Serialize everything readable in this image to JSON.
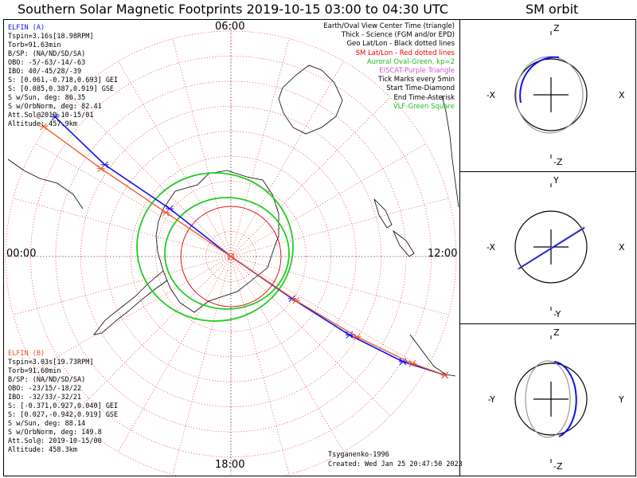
{
  "title": "Southern Solar Magnetic Footprints 2019-10-15 03:00 to 04:30 UTC",
  "orbit_title": "SM orbit",
  "hour_labels": {
    "top": "06:00",
    "left": "00:00",
    "bottom": "18:00",
    "right": "12:00"
  },
  "elfin_a": {
    "name": "ELFIN (A)",
    "color": "#1010ee",
    "lines": [
      "Tspin=3.16s[18.98RPM]",
      "Torb=91.63min",
      "B/SP: (NA/ND/SD/SA)",
      "OBO: -5/-63/-14/-63",
      "IBO: 40/-45/28/-39",
      "S: [0.061,-0.718,0.693] GEI",
      "S: [0.085,0.387,0.919] GSE",
      "S w/Sun, deg: 86.35",
      "S w/OrbNorm, deg: 82.41",
      "Att.Sol@2019-10-15/01",
      "Altitude: 457.9km"
    ]
  },
  "elfin_b": {
    "name": "ELFIN (B)",
    "color": "#ee5522",
    "lines": [
      "Tspin=3.03s[19.73RPM]",
      "Torb=91.60min",
      "B/SP: (NA/ND/SD/SA)",
      "OBO: -23/15/-18/22",
      "IBO: -32/33/-32/21",
      "S: [-0.371,0.927,0.040] GEI",
      "S: [0.027,-0.942,0.919] GSE",
      "S w/Sun, deg: 88.14",
      "S w/OrbNorm, deg: 149.8",
      "Att.Sol@: 2019-10-15/00",
      "Altitude: 458.3km"
    ]
  },
  "legend": [
    {
      "text": "Earth/Oval View Center Time (triangle)",
      "color": "#000000"
    },
    {
      "text": "Thick - Science (FGM and/or EPD)",
      "color": "#000000"
    },
    {
      "text": "Geo Lat/Lon - Black dotted lines",
      "color": "#000000"
    },
    {
      "text": "SM Lat/Lon - Red dotted lines",
      "color": "#ee0000"
    },
    {
      "text": "Auroral Oval-Green, kp=2",
      "color": "#22bb22"
    },
    {
      "text": "EISCAT-Purple Triangle",
      "color": "#cc55cc"
    },
    {
      "text": "Tick Marks every 5min",
      "color": "#000000"
    },
    {
      "text": "Start Time-Diamond",
      "color": "#000000"
    },
    {
      "text": "End Time-Asterisk",
      "color": "#000000"
    },
    {
      "text": "VLF-Green Square",
      "color": "#22bb22"
    }
  ],
  "footer": {
    "credit": "Tsyganenko-1996",
    "created": "Created: Wed Jan 25 20:47:50 2023"
  },
  "orbit_panels": [
    {
      "top": "Z",
      "bottom": "-Z",
      "left": "-X",
      "right": "X"
    },
    {
      "top": "Y",
      "bottom": "-Y",
      "left": "-X",
      "right": "X"
    },
    {
      "top": "Z",
      "bottom": "-Z",
      "left": "-Y",
      "right": "Y"
    }
  ],
  "colors": {
    "elfin_a": "#1010ee",
    "elfin_b": "#ee5522",
    "oval": "#22cc22",
    "sm_grid": "#dd0000",
    "geo": "#000000"
  },
  "chart_data": {
    "type": "scatter",
    "title": "Southern Solar Magnetic Footprints 2019-10-15 03:00 to 04:30 UTC",
    "xlabel": "",
    "ylabel": "",
    "series": [
      {
        "name": "ELFIN (A)",
        "x": [
          0.92,
          0.66,
          0.32,
          0.0,
          -0.32,
          -0.62,
          -0.9,
          -1.12
        ],
        "y": [
          0.73,
          0.48,
          0.25,
          0.0,
          -0.22,
          -0.41,
          -0.55,
          -0.62
        ]
      },
      {
        "name": "ELFIN (B)",
        "x": [
          0.98,
          0.68,
          0.34,
          0.0,
          -0.34,
          -0.66,
          -0.95,
          -1.12
        ],
        "y": [
          0.68,
          0.46,
          0.23,
          0.0,
          -0.23,
          -0.42,
          -0.56,
          -0.62
        ]
      }
    ]
  }
}
